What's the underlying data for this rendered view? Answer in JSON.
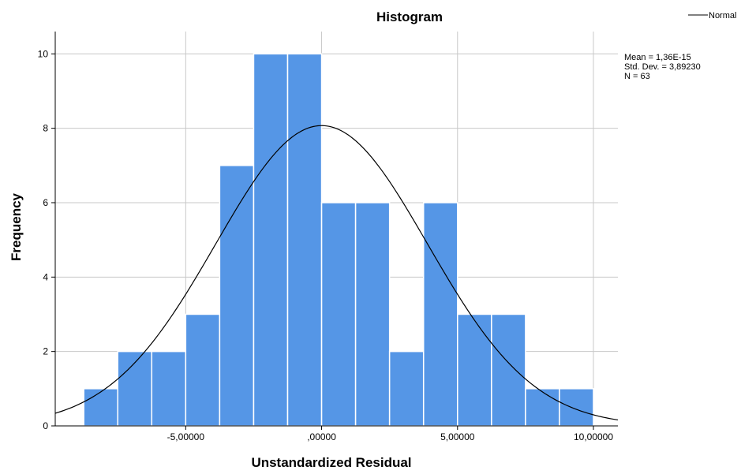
{
  "chart_data": {
    "type": "histogram",
    "title": "Histogram",
    "xlabel": "Unstandardized Residual",
    "ylabel": "Frequency",
    "xlim": [
      -9.8,
      10.9
    ],
    "ylim": [
      0,
      10.6
    ],
    "x_ticks": [
      {
        "value": -5,
        "label": "-5,00000"
      },
      {
        "value": 0,
        "label": ",00000"
      },
      {
        "value": 5,
        "label": "5,00000"
      },
      {
        "value": 10,
        "label": "10,00000"
      }
    ],
    "y_ticks": [
      {
        "value": 0,
        "label": "0"
      },
      {
        "value": 2,
        "label": "2"
      },
      {
        "value": 4,
        "label": "4"
      },
      {
        "value": 6,
        "label": "6"
      },
      {
        "value": 8,
        "label": "8"
      },
      {
        "value": 10,
        "label": "10"
      }
    ],
    "bin_width": 1.25,
    "bin_starts": [
      -8.75,
      -7.5,
      -6.25,
      -5.0,
      -3.75,
      -2.5,
      -1.25,
      0.0,
      1.25,
      2.5,
      3.75,
      5.0,
      6.25,
      7.5,
      8.75
    ],
    "values": [
      1,
      2,
      2,
      3,
      7,
      10,
      10,
      6,
      6,
      2,
      6,
      3,
      3,
      1,
      1
    ],
    "bar_color": "#5596E6",
    "bar_edge_color": "#ffffff",
    "grid": true,
    "legend": {
      "label": "Normal",
      "placement": "top-right"
    },
    "normal_curve": {
      "mean": 0,
      "std": 3.8923,
      "n": 63,
      "color": "#000000"
    },
    "stats": {
      "mean": "Mean = 1,36E-15",
      "std": "Std. Dev. = 3,89230",
      "n": "N = 63"
    }
  }
}
